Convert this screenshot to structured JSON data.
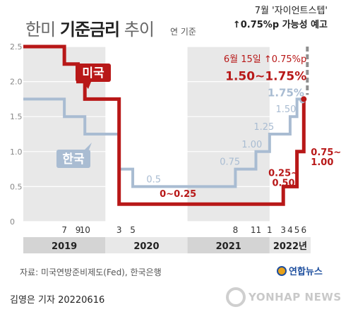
{
  "title": {
    "light": "한미",
    "bold": "기준금리",
    "light2": "추이"
  },
  "subtitle_note": "연 기준",
  "top_annotation": {
    "line1": "7월 '자이언트스텝'",
    "line2": "↑0.75%p 가능성 예고"
  },
  "source": "자료: 미국연방준비제도(Fed), 한국은행",
  "credit": "김영은 기자  20220616",
  "logo": "연합뉴스",
  "watermark": "YONHAP NEWS",
  "colors": {
    "us": "#b81818",
    "korea": "#a9bcd2",
    "band": "#e8e8e8",
    "year_band": "#d4d4d4",
    "projection": "#8f8f8f"
  },
  "chart_data": {
    "type": "line",
    "ylim": [
      0,
      2.5
    ],
    "yticks": [
      0,
      0.5,
      1.0,
      1.5,
      2.0,
      2.5
    ],
    "ytick_labels": [
      "0",
      "0.5",
      "1.0",
      "1.5",
      "2.0",
      "2.5"
    ],
    "xlim": [
      "2019-01",
      "2022-07"
    ],
    "month_ticks": [
      {
        "date": "2019-07",
        "label": "7"
      },
      {
        "date": "2019-09",
        "label": "9"
      },
      {
        "date": "2019-10",
        "label": "10"
      },
      {
        "date": "2020-03",
        "label": "3"
      },
      {
        "date": "2020-05",
        "label": "5"
      },
      {
        "date": "2021-08",
        "label": "8"
      },
      {
        "date": "2021-11",
        "label": "11"
      },
      {
        "date": "2022-01",
        "label": "1"
      },
      {
        "date": "2022-03",
        "label": "3"
      },
      {
        "date": "2022-04",
        "label": "4"
      },
      {
        "date": "2022-05",
        "label": "5"
      },
      {
        "date": "2022-06",
        "label": "6"
      }
    ],
    "years": [
      {
        "label": "2019",
        "start": "2019-01",
        "end": "2020-01"
      },
      {
        "label": "2020",
        "start": "2020-01",
        "end": "2021-01"
      },
      {
        "label": "2021",
        "start": "2021-01",
        "end": "2022-01"
      },
      {
        "label": "2022년",
        "start": "2022-01",
        "end": "2022-07"
      }
    ],
    "series": [
      {
        "name": "한국",
        "steps": [
          {
            "date": "2019-01",
            "value": 1.75
          },
          {
            "date": "2019-07",
            "value": 1.5
          },
          {
            "date": "2019-10",
            "value": 1.25
          },
          {
            "date": "2020-03",
            "value": 0.75
          },
          {
            "date": "2020-05",
            "value": 0.5
          },
          {
            "date": "2021-08",
            "value": 0.75
          },
          {
            "date": "2021-11",
            "value": 1.0
          },
          {
            "date": "2022-01",
            "value": 1.25
          },
          {
            "date": "2022-04",
            "value": 1.5
          },
          {
            "date": "2022-05",
            "value": 1.75
          },
          {
            "date": "2022-06",
            "value": 1.75
          }
        ]
      },
      {
        "name": "미국",
        "steps": [
          {
            "date": "2019-01",
            "value": 2.5
          },
          {
            "date": "2019-07",
            "value": 2.25
          },
          {
            "date": "2019-09",
            "value": 2.0
          },
          {
            "date": "2019-10",
            "value": 1.75
          },
          {
            "date": "2020-03",
            "value": 0.25
          },
          {
            "date": "2022-03",
            "value": 0.5
          },
          {
            "date": "2022-05",
            "value": 1.0
          },
          {
            "date": "2022-06",
            "value": 1.75
          }
        ]
      }
    ],
    "projection": {
      "from": 1.75,
      "to": 2.5,
      "date": "2022-06"
    },
    "data_labels": [
      {
        "text": "0.5",
        "series": "한국"
      },
      {
        "text": "0.75",
        "series": "한국"
      },
      {
        "text": "1.00",
        "series": "한국"
      },
      {
        "text": "1.25",
        "series": "한국"
      },
      {
        "text": "1.50",
        "series": "한국"
      },
      {
        "text": "1.75%",
        "series": "한국"
      },
      {
        "text": "0~0.25",
        "series": "미국"
      },
      {
        "text": "0.25~",
        "series": "미국"
      },
      {
        "text": "0.50",
        "series": "미국"
      },
      {
        "text": "0.75~",
        "series": "미국"
      },
      {
        "text": "1.00",
        "series": "미국"
      },
      {
        "text": "6월 15일 ↑0.75%p",
        "series": "미국"
      },
      {
        "text": "1.50~1.75%",
        "series": "미국"
      }
    ]
  }
}
